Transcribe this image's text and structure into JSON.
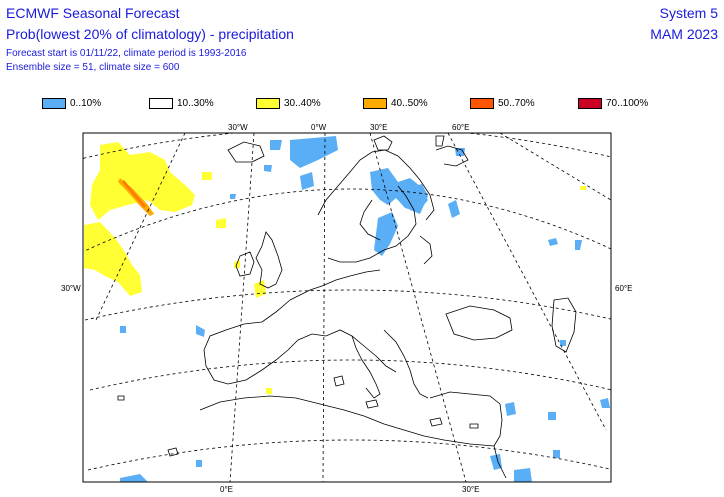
{
  "header": {
    "title": "ECMWF Seasonal Forecast",
    "subtitle": "Prob(lowest 20% of climatology) - precipitation",
    "line3": "Forecast start is 01/11/22, climate period is 1993-2016",
    "line4": "Ensemble size = 51, climate size = 600",
    "system": "System 5",
    "season": "MAM 2023"
  },
  "legend": [
    {
      "label": "0..10%",
      "color": "#5aaef5"
    },
    {
      "label": "10..30%",
      "color": "#ffffff"
    },
    {
      "label": "30..40%",
      "color": "#ffff33"
    },
    {
      "label": "40..50%",
      "color": "#ffaa00"
    },
    {
      "label": "50..70%",
      "color": "#ff5500"
    },
    {
      "label": "70..100%",
      "color": "#cc0022"
    }
  ],
  "ticks": {
    "top_30w": "30°W",
    "top_0": "0°W",
    "top_30e": "30°E",
    "top_60e": "60°E",
    "left_30w": "30°W",
    "right_60e": "60°E",
    "bottom_0": "0°E",
    "bottom_30e": "30°E"
  }
}
